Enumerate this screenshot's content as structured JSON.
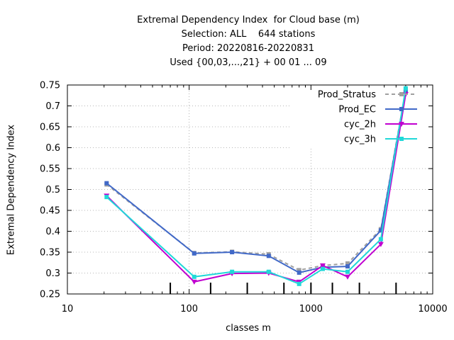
{
  "chart_data": {
    "type": "line",
    "title_lines": [
      "Extremal Dependency Index  for Cloud base (m)",
      "Selection: ALL    644 stations",
      "Period: 20220816-20220831",
      "Used {00,03,...,21} + 00 01 ... 09"
    ],
    "xlabel": "classes m",
    "ylabel": "Extremal Dependency Index",
    "x_scale": "log",
    "xlim": [
      10,
      10000
    ],
    "ylim": [
      0.25,
      0.75
    ],
    "x_ticks": [
      10,
      100,
      1000,
      10000
    ],
    "x_tick_labels": [
      "10",
      "100",
      "1000",
      "10000"
    ],
    "y_ticks": [
      0.25,
      0.3,
      0.35,
      0.4,
      0.45,
      0.5,
      0.55,
      0.6,
      0.65,
      0.7,
      0.75
    ],
    "y_tick_labels": [
      "0.25",
      "0.3",
      "0.35",
      "0.4",
      "0.45",
      "0.5",
      "0.55",
      "0.6",
      "0.65",
      "0.7",
      "0.75"
    ],
    "grid": true,
    "legend_position": "top-right",
    "class_boundary_markers": [
      70,
      150,
      300,
      600,
      1000,
      1500,
      2500,
      5000
    ],
    "series": [
      {
        "name": "Prod_Stratus",
        "color": "#a0a0a0",
        "dashed": true,
        "marker": "square",
        "x": [
          21,
          110,
          225,
          450,
          800,
          1250,
          2000,
          3750,
          6000
        ],
        "y": [
          0.512,
          0.348,
          0.351,
          0.345,
          0.307,
          0.318,
          0.323,
          0.405,
          0.738
        ]
      },
      {
        "name": "Prod_EC",
        "color": "#4169c8",
        "dashed": false,
        "marker": "square",
        "x": [
          21,
          110,
          225,
          450,
          800,
          1250,
          2000,
          3750,
          6000
        ],
        "y": [
          0.515,
          0.347,
          0.35,
          0.341,
          0.301,
          0.314,
          0.316,
          0.402,
          0.735
        ]
      },
      {
        "name": "cyc_2h",
        "color": "#c000d0",
        "dashed": false,
        "marker": "triangle",
        "x": [
          21,
          110,
          225,
          450,
          800,
          1250,
          2000,
          3750,
          6000
        ],
        "y": [
          0.485,
          0.279,
          0.299,
          0.3,
          0.279,
          0.318,
          0.291,
          0.369,
          0.728
        ]
      },
      {
        "name": "cyc_3h",
        "color": "#20d8d8",
        "dashed": false,
        "marker": "square",
        "x": [
          21,
          110,
          225,
          450,
          800,
          1250,
          2000,
          3750,
          6000
        ],
        "y": [
          0.482,
          0.291,
          0.303,
          0.303,
          0.274,
          0.31,
          0.303,
          0.381,
          0.742
        ]
      }
    ]
  }
}
